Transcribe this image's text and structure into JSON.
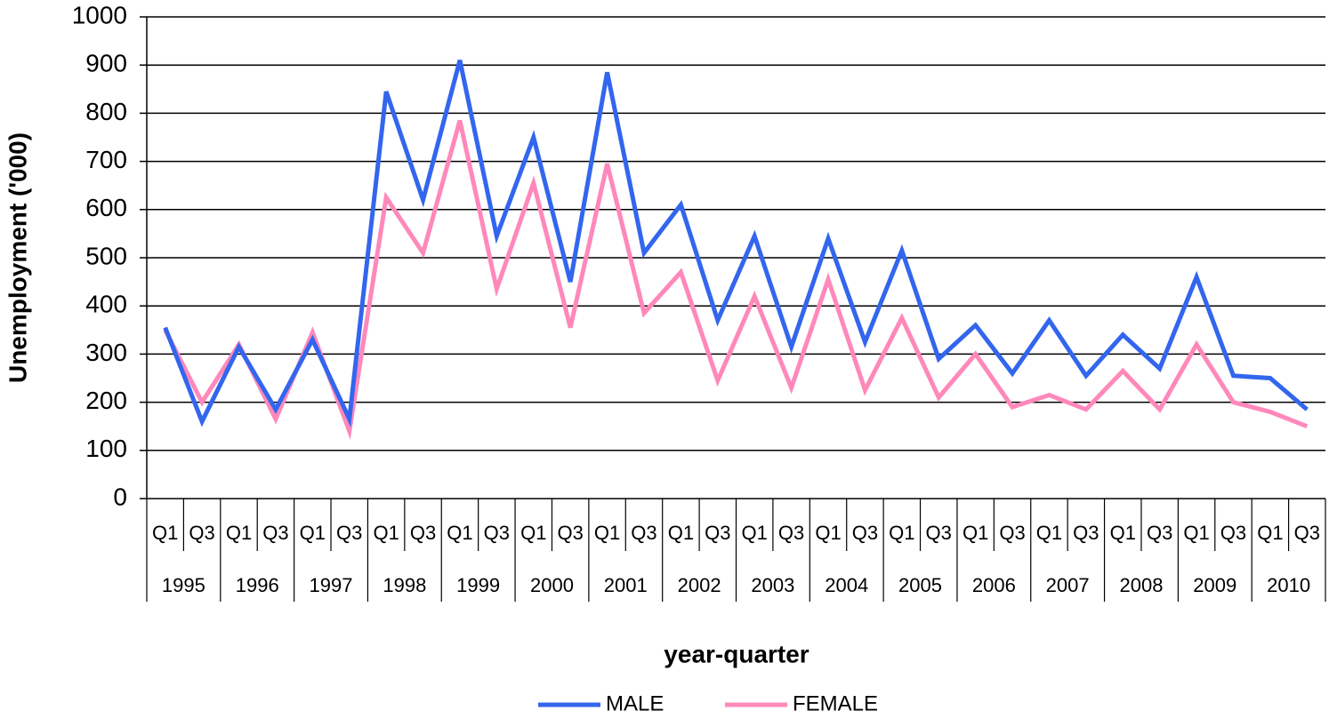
{
  "chart_data": {
    "type": "line",
    "y_label": "Unemployment ('000)",
    "x_label": "year-quarter",
    "categories": [
      "Q1",
      "Q3",
      "Q1",
      "Q3",
      "Q1",
      "Q3",
      "Q1",
      "Q3",
      "Q1",
      "Q3",
      "Q1",
      "Q3",
      "Q1",
      "Q3",
      "Q1",
      "Q3",
      "Q1",
      "Q3",
      "Q1",
      "Q3",
      "Q1",
      "Q3",
      "Q1",
      "Q3",
      "Q1",
      "Q3",
      "Q1",
      "Q3",
      "Q1",
      "Q3",
      "Q1",
      "Q3"
    ],
    "category_groups": [
      "1995",
      "1996",
      "1997",
      "1998",
      "1999",
      "2000",
      "2001",
      "2002",
      "2003",
      "2004",
      "2005",
      "2006",
      "2007",
      "2008",
      "2009",
      "2010"
    ],
    "series": [
      {
        "name": "MALE",
        "color": "#3366ee",
        "values": [
          355,
          160,
          315,
          185,
          330,
          165,
          845,
          620,
          910,
          545,
          750,
          450,
          885,
          510,
          610,
          370,
          545,
          315,
          540,
          325,
          515,
          290,
          360,
          260,
          370,
          255,
          340,
          270,
          460,
          255,
          250,
          185
        ]
      },
      {
        "name": "FEMALE",
        "color": "#ff88bb",
        "values": [
          350,
          200,
          320,
          165,
          345,
          140,
          625,
          510,
          785,
          435,
          655,
          355,
          695,
          385,
          470,
          245,
          420,
          230,
          455,
          225,
          375,
          210,
          300,
          190,
          215,
          185,
          265,
          185,
          320,
          200,
          180,
          150
        ]
      }
    ],
    "ylim": [
      0,
      1000
    ],
    "yticks": [
      0,
      100,
      200,
      300,
      400,
      500,
      600,
      700,
      800,
      900,
      1000
    ],
    "grid": true,
    "legend": "bottom"
  }
}
